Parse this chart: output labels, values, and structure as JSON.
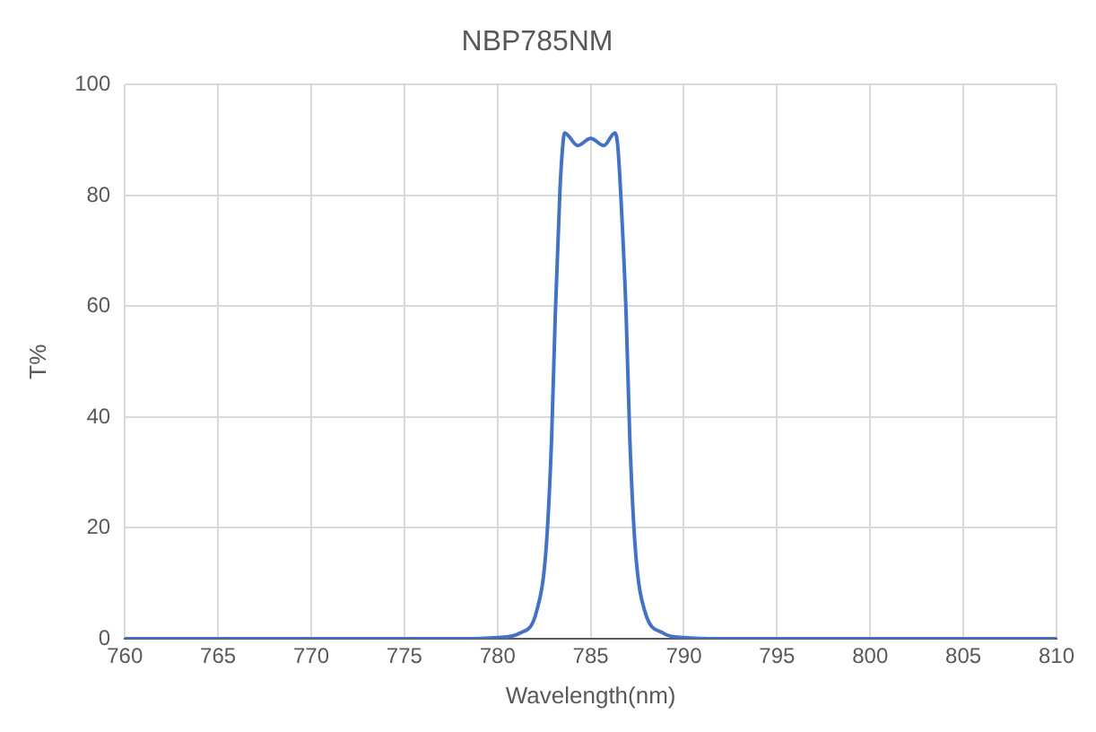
{
  "chart_data": {
    "type": "line",
    "title": "NBP785NM",
    "xlabel": "Wavelength(nm)",
    "ylabel": "T%",
    "x": [
      760,
      770,
      778,
      780,
      781.2,
      782.1,
      782.6,
      782.9,
      783.1,
      783.35,
      783.5,
      783.6,
      784.3,
      785,
      785.7,
      786.3,
      786.45,
      786.6,
      786.9,
      787.1,
      787.4,
      787.9,
      788.9,
      790,
      792,
      800,
      810
    ],
    "series": [
      {
        "color": "#4472c4",
        "values": [
          0,
          0,
          0,
          0.2,
          1,
          5,
          16,
          36,
          58.6,
          81,
          89,
          91.3,
          89,
          90.3,
          89,
          91.3,
          89,
          81,
          58.6,
          36,
          16,
          5,
          1,
          0.2,
          0,
          0,
          0
        ]
      }
    ],
    "xlim": [
      760,
      810
    ],
    "xticks": [
      760,
      765,
      770,
      775,
      780,
      785,
      790,
      795,
      800,
      805,
      810
    ],
    "ylim": [
      0,
      100
    ],
    "yticks": [
      0,
      20,
      40,
      60,
      80,
      100
    ],
    "grid": true,
    "legend": false,
    "marker": "none",
    "line_style": "solid"
  }
}
